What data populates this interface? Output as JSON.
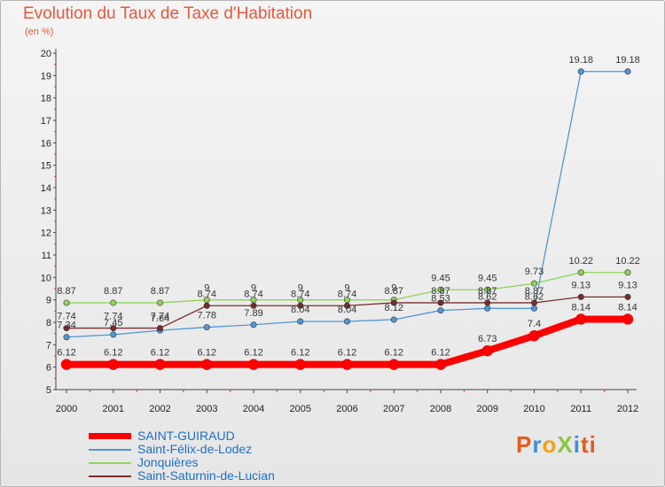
{
  "title": "Evolution du Taux de Taxe d'Habitation",
  "subtitle": "(en %)",
  "logo": "ProXiti",
  "chart_data": {
    "type": "line",
    "title": "Evolution du Taux de Taxe d'Habitation",
    "ylabel": "(en %)",
    "xlabel": "",
    "ylim": [
      5,
      20
    ],
    "yticks": [
      5,
      6,
      7,
      8,
      9,
      10,
      11,
      12,
      13,
      14,
      15,
      16,
      17,
      18,
      19,
      20
    ],
    "grid": false,
    "legend_position": "bottom-left",
    "x": [
      "2000",
      "2001",
      "2002",
      "2003",
      "2004",
      "2005",
      "2006",
      "2007",
      "2008",
      "2009",
      "2010",
      "2011",
      "2012"
    ],
    "series": [
      {
        "name": "SAINT-GUIRAUD",
        "color": "#ff0000",
        "values": [
          6.12,
          6.12,
          6.12,
          6.12,
          6.12,
          6.12,
          6.12,
          6.12,
          6.12,
          6.73,
          7.4,
          8.14,
          8.14
        ],
        "labels": [
          "6.12",
          "6.12",
          "6.12",
          "6.12",
          "6.12",
          "6.12",
          "6.12",
          "6.12",
          "6.12",
          "6.73",
          "7.4",
          "8.14",
          "8.14"
        ]
      },
      {
        "name": "Saint-Félix-de-Lodez",
        "color": "#4f97d6",
        "values": [
          7.34,
          7.45,
          7.64,
          7.78,
          7.89,
          8.04,
          8.04,
          8.12,
          8.53,
          8.62,
          8.62,
          19.18,
          19.18
        ],
        "labels": [
          "7.34",
          "7.45",
          "7.64",
          "7.78",
          "7.89",
          "8.04",
          "8.04",
          "8.12",
          "8.53",
          "8.62",
          "8.62",
          "19.18",
          "19.18"
        ]
      },
      {
        "name": "Jonquières",
        "color": "#8fd45a",
        "values": [
          8.87,
          8.87,
          8.87,
          9,
          9,
          9,
          9,
          9,
          9.45,
          9.45,
          9.73,
          10.22,
          10.22
        ],
        "labels": [
          "8.87",
          "8.87",
          "8.87",
          "9",
          "9",
          "9",
          "9",
          "9",
          "9.45",
          "9.45",
          "9.73",
          "10.22",
          "10.22"
        ]
      },
      {
        "name": "Saint-Saturnin-de-Lucian",
        "color": "#7a2c2c",
        "values": [
          7.74,
          7.74,
          7.74,
          8.74,
          8.74,
          8.74,
          8.74,
          8.87,
          8.87,
          8.87,
          8.87,
          9.13,
          9.13
        ],
        "labels": [
          "7.74",
          "7.74",
          "7.74",
          "8.74",
          "8.74",
          "8.74",
          "8.74",
          "8.87",
          "8.87",
          "8.87",
          "8.87",
          "9.13",
          "9.13"
        ]
      }
    ]
  }
}
